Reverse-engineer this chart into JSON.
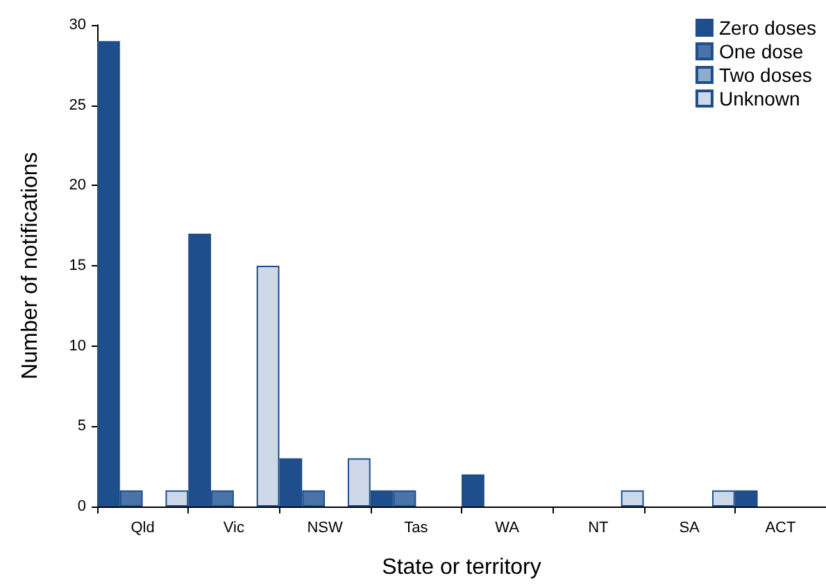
{
  "chart_data": {
    "type": "bar",
    "xlabel": "State or territory",
    "ylabel": "Number of notifications",
    "categories": [
      "Qld",
      "Vic",
      "NSW",
      "Tas",
      "WA",
      "NT",
      "SA",
      "ACT"
    ],
    "series": [
      {
        "name": "Zero doses",
        "color": "#1f4e8c",
        "values": [
          29,
          17,
          3,
          1,
          2,
          0,
          0,
          1
        ]
      },
      {
        "name": "One dose",
        "color": "#4a73a8",
        "values": [
          1,
          1,
          1,
          1,
          0,
          0,
          0,
          0
        ]
      },
      {
        "name": "Two doses",
        "color": "#8eabd0",
        "values": [
          0,
          0,
          0,
          0,
          0,
          0,
          0,
          0
        ]
      },
      {
        "name": "Unknown",
        "color": "#cdd9e8",
        "values": [
          1,
          15,
          3,
          0,
          0,
          1,
          1,
          0
        ]
      }
    ],
    "ylim": [
      0,
      30
    ],
    "yticks": [
      0,
      5,
      10,
      15,
      20,
      25,
      30
    ],
    "grid": false,
    "legend": "top right"
  }
}
